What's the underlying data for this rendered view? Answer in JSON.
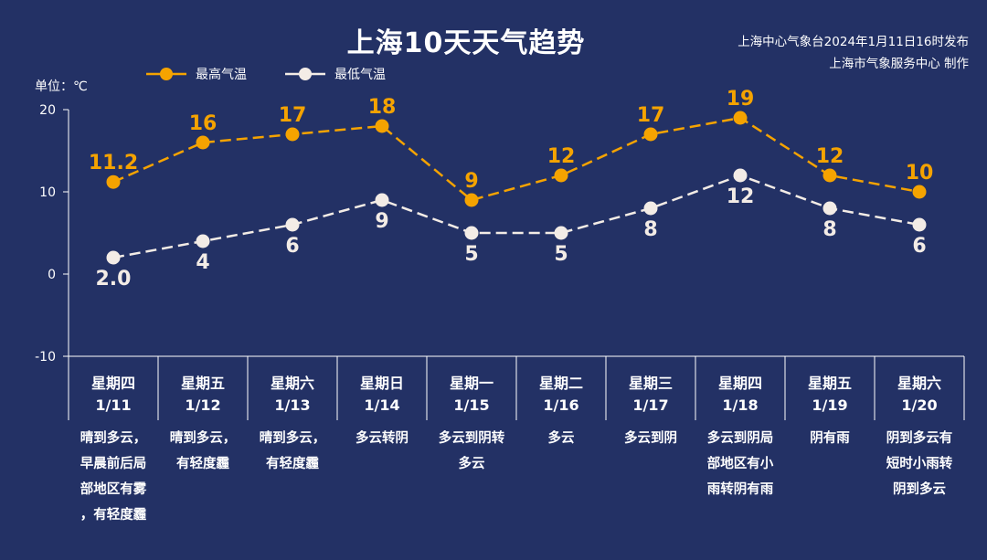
{
  "title": "上海10天天气趋势",
  "issuer": {
    "line1": "上海中心气象台2024年1月11日16时发布",
    "line2": "上海市气象服务中心 制作"
  },
  "unit_label": "单位：℃",
  "colors": {
    "background": "#233165",
    "high": "#f5a300",
    "low": "#f3ece6",
    "axis": "#ffffff"
  },
  "chart_data": {
    "type": "line",
    "categories": [
      "1/11",
      "1/12",
      "1/13",
      "1/14",
      "1/15",
      "1/16",
      "1/17",
      "1/18",
      "1/19",
      "1/20"
    ],
    "series": [
      {
        "name": "最高气温",
        "values": [
          11.2,
          16,
          17,
          18,
          9,
          12,
          17,
          19,
          12,
          10
        ],
        "labels": [
          "11.2",
          "16",
          "17",
          "18",
          "9",
          "12",
          "17",
          "19",
          "12",
          "10"
        ],
        "line_style": "dashed",
        "color": "#f5a300"
      },
      {
        "name": "最低气温",
        "values": [
          2.0,
          4,
          6,
          9,
          5,
          5,
          8,
          12,
          8,
          6
        ],
        "labels": [
          "2.0",
          "4",
          "6",
          "9",
          "5",
          "5",
          "8",
          "12",
          "8",
          "6"
        ],
        "line_style": "dashed",
        "color": "#f3ece6"
      }
    ],
    "ylim": [
      -10,
      20
    ],
    "yticks": [
      20,
      10,
      0,
      -10
    ],
    "grid": false,
    "legend_position": "top-left"
  },
  "days": [
    {
      "weekday": "星期四",
      "date": "1/11",
      "weather": [
        "晴到多云，",
        "早晨前后局",
        "部地区有雾",
        "，有轻度霾"
      ]
    },
    {
      "weekday": "星期五",
      "date": "1/12",
      "weather": [
        "晴到多云，",
        "有轻度霾"
      ]
    },
    {
      "weekday": "星期六",
      "date": "1/13",
      "weather": [
        "晴到多云，",
        "有轻度霾"
      ]
    },
    {
      "weekday": "星期日",
      "date": "1/14",
      "weather": [
        "多云转阴"
      ]
    },
    {
      "weekday": "星期一",
      "date": "1/15",
      "weather": [
        "多云到阴转",
        "多云"
      ]
    },
    {
      "weekday": "星期二",
      "date": "1/16",
      "weather": [
        "多云"
      ]
    },
    {
      "weekday": "星期三",
      "date": "1/17",
      "weather": [
        "多云到阴"
      ]
    },
    {
      "weekday": "星期四",
      "date": "1/18",
      "weather": [
        "多云到阴局",
        "部地区有小",
        "雨转阴有雨"
      ]
    },
    {
      "weekday": "星期五",
      "date": "1/19",
      "weather": [
        "阴有雨"
      ]
    },
    {
      "weekday": "星期六",
      "date": "1/20",
      "weather": [
        "阴到多云有",
        "短时小雨转",
        "阴到多云"
      ]
    }
  ]
}
